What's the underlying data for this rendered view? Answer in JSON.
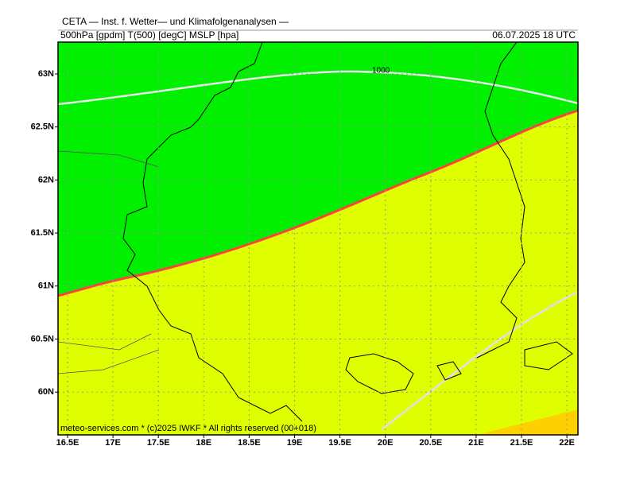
{
  "header": {
    "title": "CETA — Inst. f. Wetter— und Klimafolgenanalysen —",
    "fields": "500hPa [gpdm] T(500) [degC] MSLP [hpa]",
    "valid_time": "06.07.2025 18 UTC"
  },
  "map": {
    "isobar_label": "1000",
    "lon_labels": [
      "16.5E",
      "17E",
      "17.5E",
      "18E",
      "18.5E",
      "19E",
      "19.5E",
      "20E",
      "20.5E",
      "21E",
      "21.5E",
      "22E"
    ],
    "lat_labels": [
      "63N",
      "62.5N",
      "62N",
      "61.5N",
      "61N",
      "60.5N",
      "60N"
    ],
    "credit": "meteo-services.com * (c)2025 IWKF * All rights reserved (00+018)"
  }
}
